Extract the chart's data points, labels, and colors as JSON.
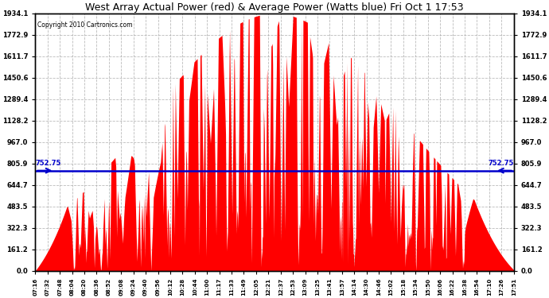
{
  "title": "West Array Actual Power (red) & Average Power (Watts blue) Fri Oct 1 17:53",
  "copyright": "Copyright 2010 Cartronics.com",
  "average_power": 752.75,
  "y_ticks": [
    0.0,
    161.2,
    322.3,
    483.5,
    644.7,
    805.9,
    967.0,
    1128.2,
    1289.4,
    1450.6,
    1611.7,
    1772.9,
    1934.1
  ],
  "y_max": 1934.1,
  "y_min": 0.0,
  "background_color": "#ffffff",
  "plot_bg_color": "#ffffff",
  "grid_color": "#aaaaaa",
  "bar_color": "#ff0000",
  "avg_line_color": "#0000cc",
  "x_labels": [
    "07:16",
    "07:32",
    "07:48",
    "08:04",
    "08:20",
    "08:36",
    "08:52",
    "09:08",
    "09:24",
    "09:40",
    "09:56",
    "10:12",
    "10:28",
    "10:44",
    "11:00",
    "11:17",
    "11:33",
    "11:49",
    "12:05",
    "12:21",
    "12:37",
    "12:53",
    "13:09",
    "13:25",
    "13:41",
    "13:57",
    "14:14",
    "14:30",
    "14:46",
    "15:02",
    "15:18",
    "15:34",
    "15:50",
    "16:06",
    "16:22",
    "16:38",
    "16:54",
    "17:10",
    "17:26",
    "17:51"
  ]
}
